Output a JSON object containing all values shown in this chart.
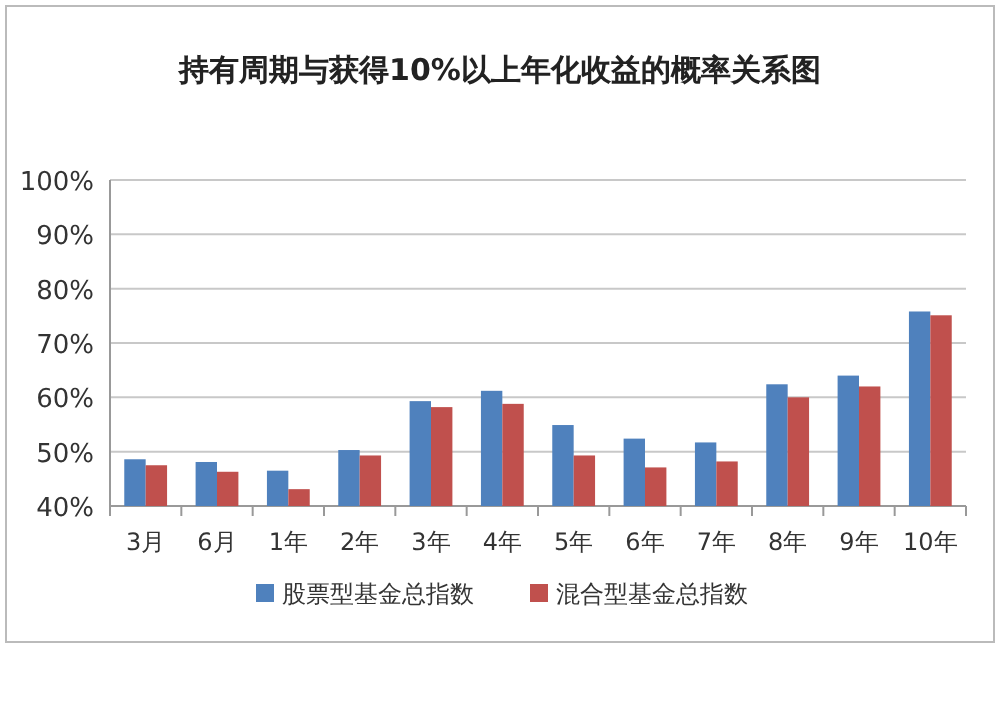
{
  "chart_data": {
    "type": "bar",
    "title": "持有周期与获得10%以上年化收益的概率关系图",
    "categories": [
      "3月",
      "6月",
      "1年",
      "2年",
      "3年",
      "4年",
      "5年",
      "6年",
      "7年",
      "8年",
      "9年",
      "10年"
    ],
    "series": [
      {
        "name": "股票型基金总指数",
        "color": "#4f81bd",
        "values": [
          48.6,
          48.1,
          46.5,
          50.3,
          59.3,
          61.2,
          54.9,
          52.4,
          51.7,
          62.4,
          64,
          75.8
        ]
      },
      {
        "name": "混合型基金总指数",
        "color": "#c0504d",
        "values": [
          47.5,
          46.3,
          43.1,
          49.3,
          58.2,
          58.8,
          49.3,
          47.1,
          48.2,
          60,
          62,
          75.1
        ]
      }
    ],
    "ylim": [
      40,
      100
    ],
    "yticks": [
      {
        "value": 40,
        "label": "40%"
      },
      {
        "value": 50,
        "label": "50%"
      },
      {
        "value": 60,
        "label": "60%"
      },
      {
        "value": 70,
        "label": "70%"
      },
      {
        "value": 80,
        "label": "80%"
      },
      {
        "value": 90,
        "label": "90%"
      },
      {
        "value": 100,
        "label": "100%"
      }
    ],
    "grid": "y",
    "legend": "bottom"
  }
}
